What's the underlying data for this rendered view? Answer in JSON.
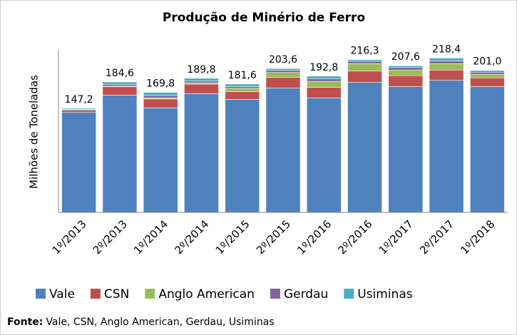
{
  "chart_data": {
    "type": "stacked_bar",
    "title": "Produção de Minério de Ferro",
    "y_label": "Milhões de Toneladas",
    "categories": [
      "1º/2013",
      "2º/2013",
      "1º/2014",
      "2º/2014",
      "1º/2015",
      "2º/2015",
      "1º/2016",
      "2º/2016",
      "1º/2017",
      "2º/2017",
      "1º/2018"
    ],
    "series": [
      {
        "name": "Vale",
        "color": "#4f81bd",
        "values": [
          141.5,
          166.0,
          148.0,
          168.0,
          160.0,
          176.0,
          162.0,
          184.0,
          178.0,
          187.0,
          178.0
        ]
      },
      {
        "name": "CSN",
        "color": "#c0504d",
        "values": [
          3.0,
          12.0,
          12.5,
          13.5,
          11.0,
          15.0,
          15.0,
          16.0,
          15.5,
          14.5,
          12.5
        ]
      },
      {
        "name": "Anglo American",
        "color": "#9bbb59",
        "values": [
          0,
          0.5,
          1.5,
          2.0,
          4.5,
          7.0,
          8.5,
          10.5,
          8.0,
          9.0,
          5.0
        ]
      },
      {
        "name": "Gerdau",
        "color": "#8064a2",
        "values": [
          1.2,
          2.5,
          3.5,
          2.5,
          2.5,
          3.0,
          3.5,
          3.5,
          3.5,
          4.0,
          3.0
        ]
      },
      {
        "name": "Usiminas",
        "color": "#4bacc6",
        "values": [
          1.5,
          3.6,
          4.3,
          3.8,
          3.6,
          2.6,
          3.8,
          2.3,
          2.6,
          3.9,
          2.5
        ]
      }
    ],
    "totals": {
      "values": [
        147.2,
        184.6,
        169.8,
        189.8,
        181.6,
        203.6,
        192.8,
        216.3,
        207.6,
        218.4,
        201.0
      ],
      "value_labels": [
        "147,2",
        "184,6",
        "169,8",
        "189,8",
        "181,6",
        "203,6",
        "192,8",
        "216,3",
        "207,6",
        "218,4",
        "201,0"
      ]
    },
    "ylim": [
      0,
      230
    ],
    "legend": "bottom",
    "source": {
      "label": "Fonte:",
      "text": "Vale, CSN, Anglo American, Gerdau, Usiminas"
    }
  }
}
